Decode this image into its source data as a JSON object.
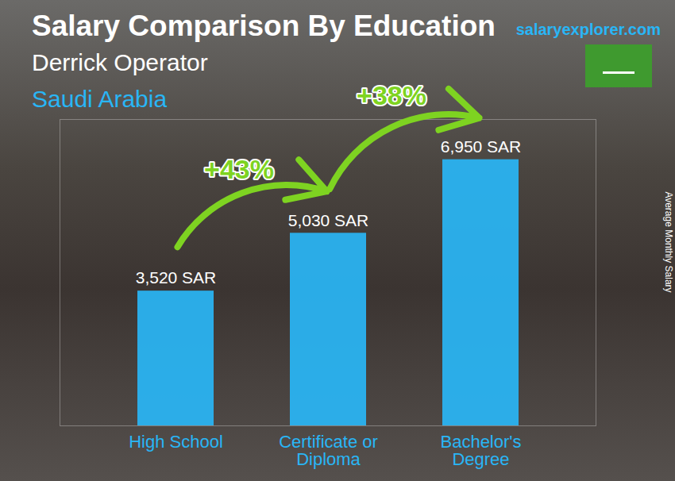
{
  "chart_data": {
    "type": "bar",
    "title": "Salary Comparison By Education",
    "subtitle": "Derrick Operator",
    "location": "Saudi Arabia",
    "source": "salaryexplorer.com",
    "y_label": "Average Monthly Salary",
    "categories": [
      "High School",
      "Certificate or Diploma",
      "Bachelor's Degree"
    ],
    "values": [
      3520,
      5030,
      6950
    ],
    "value_labels": [
      "3,520 SAR",
      "5,030 SAR",
      "6,950 SAR"
    ],
    "annotations": [
      {
        "text": "+43%",
        "from": "High School",
        "to": "Certificate or Diploma"
      },
      {
        "text": "+38%",
        "from": "Certificate or Diploma",
        "to": "Bachelor's Degree"
      }
    ],
    "color": "#29b6f6",
    "ylim": [
      0,
      8000
    ],
    "yticks": [],
    "grid": false,
    "data_labels": true,
    "tick_labels": "x"
  }
}
